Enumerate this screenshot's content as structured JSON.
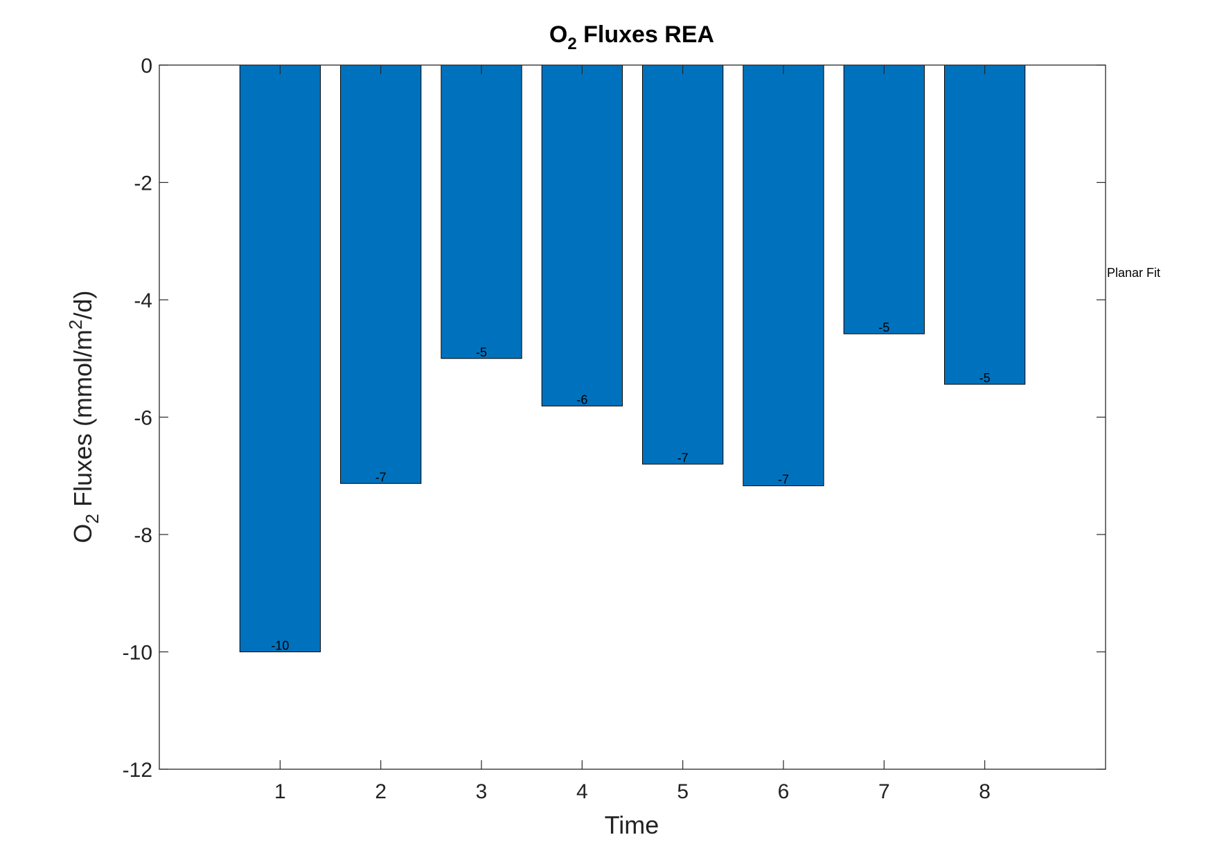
{
  "chart_data": {
    "type": "bar",
    "title_main": "O",
    "title_sub": "2",
    "title_rest": " Fluxes REA",
    "xlabel": "Time",
    "ylabel_main": "O",
    "ylabel_sub": "2",
    "ylabel_mid": " Fluxes (mmol/m",
    "ylabel_sup": "2",
    "ylabel_end": "/d)",
    "categories": [
      "1",
      "2",
      "3",
      "4",
      "5",
      "6",
      "7",
      "8"
    ],
    "x": [
      1,
      2,
      3,
      4,
      5,
      6,
      7,
      8
    ],
    "values": [
      -10.0,
      -7.13,
      -5.0,
      -5.81,
      -6.8,
      -7.17,
      -4.58,
      -5.44
    ],
    "data_labels": [
      "-10",
      "-7",
      "-5",
      "-6",
      "-7",
      "-7",
      "-5",
      "-5"
    ],
    "ylim": [
      -12,
      0
    ],
    "xlim": [
      -0.2,
      9.2
    ],
    "yticks": [
      0,
      -2,
      -4,
      -6,
      -8,
      -10,
      -12
    ],
    "ytick_labels": [
      "0",
      "-2",
      "-4",
      "-6",
      "-8",
      "-10",
      "-12"
    ],
    "annotation": "Planar Fit",
    "bar_color": "#0072BD",
    "grid": false,
    "legend": "none"
  }
}
